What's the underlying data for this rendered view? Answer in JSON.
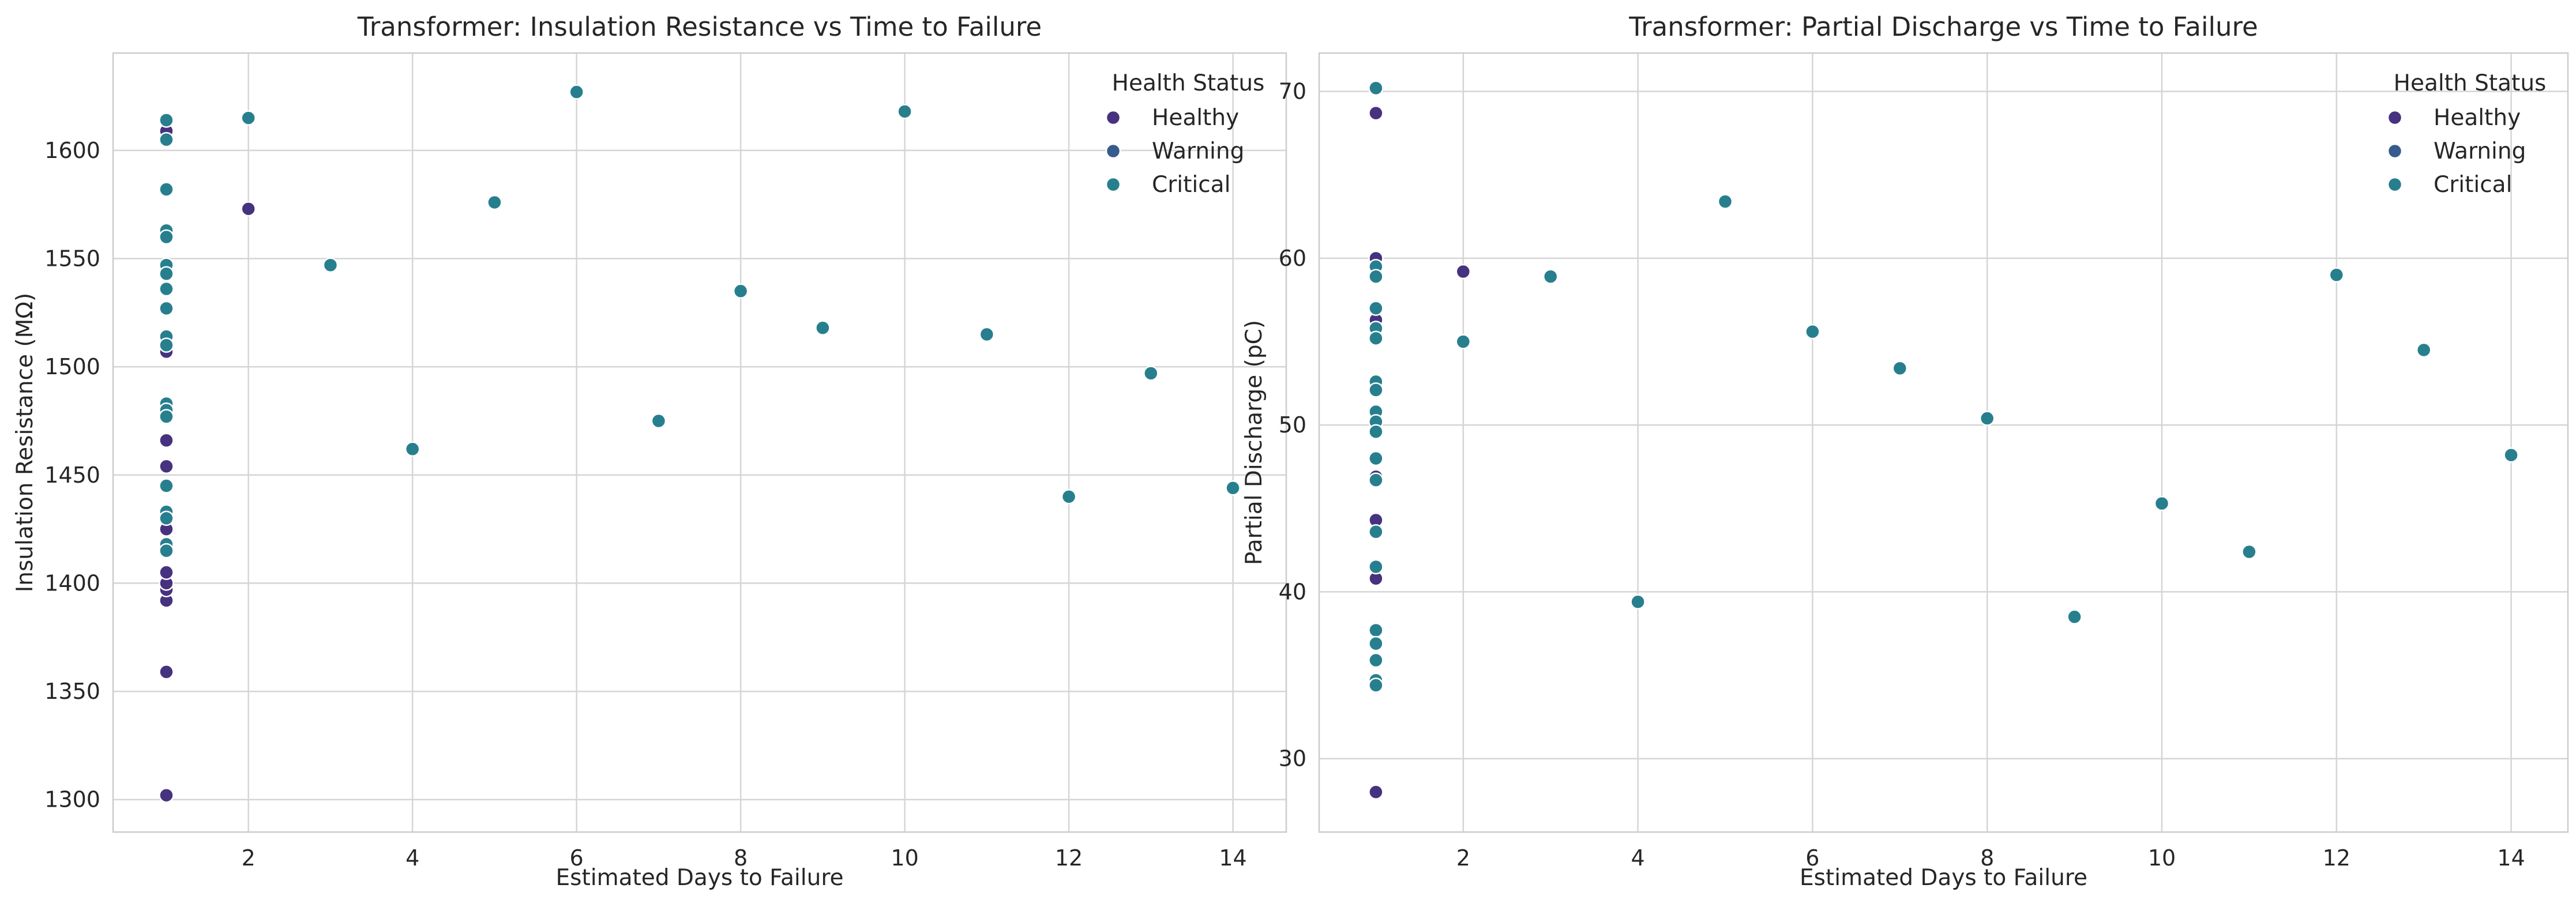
{
  "chart_data": [
    {
      "type": "scatter",
      "title": "Transformer: Insulation Resistance vs Time to Failure",
      "xlabel": "Estimated Days to Failure",
      "ylabel": "Insulation Resistance (MΩ)",
      "xlim": [
        0.35,
        14.65
      ],
      "ylim": [
        1285,
        1645
      ],
      "xticks": [
        2,
        4,
        6,
        8,
        10,
        12,
        14
      ],
      "yticks": [
        1300,
        1350,
        1400,
        1450,
        1500,
        1550,
        1600
      ],
      "grid": true,
      "legend": {
        "title": "Health Status",
        "placement": "top-right"
      },
      "series": [
        {
          "name": "Healthy",
          "color": "#46327e",
          "points": [
            [
              1,
              1302
            ],
            [
              1,
              1359
            ],
            [
              1,
              1392
            ],
            [
              1,
              1397
            ],
            [
              1,
              1400
            ],
            [
              1,
              1405
            ],
            [
              1,
              1425
            ],
            [
              1,
              1454
            ],
            [
              1,
              1466
            ],
            [
              1,
              1507
            ],
            [
              1,
              1609
            ],
            [
              2,
              1573
            ]
          ]
        },
        {
          "name": "Warning",
          "color": "#365c8d",
          "points": []
        },
        {
          "name": "Critical",
          "color": "#277f8e",
          "points": [
            [
              1,
              1614
            ],
            [
              1,
              1605
            ],
            [
              1,
              1582
            ],
            [
              1,
              1563
            ],
            [
              1,
              1560
            ],
            [
              1,
              1547
            ],
            [
              1,
              1543
            ],
            [
              1,
              1536
            ],
            [
              1,
              1527
            ],
            [
              1,
              1514
            ],
            [
              1,
              1510
            ],
            [
              1,
              1483
            ],
            [
              1,
              1480
            ],
            [
              1,
              1477
            ],
            [
              1,
              1445
            ],
            [
              1,
              1433
            ],
            [
              1,
              1430
            ],
            [
              1,
              1418
            ],
            [
              1,
              1415
            ],
            [
              2,
              1615
            ],
            [
              3,
              1547
            ],
            [
              4,
              1462
            ],
            [
              5,
              1576
            ],
            [
              6,
              1627
            ],
            [
              7,
              1475
            ],
            [
              8,
              1535
            ],
            [
              9,
              1518
            ],
            [
              10,
              1618
            ],
            [
              11,
              1515
            ],
            [
              12,
              1440
            ],
            [
              13,
              1497
            ],
            [
              14,
              1444
            ]
          ]
        }
      ]
    },
    {
      "type": "scatter",
      "title": "Transformer: Partial Discharge vs Time to Failure",
      "xlabel": "Estimated Days to Failure",
      "ylabel": "Partial Discharge (pC)",
      "xlim": [
        0.35,
        14.65
      ],
      "ylim": [
        25.6,
        72.3
      ],
      "xticks": [
        2,
        4,
        6,
        8,
        10,
        12,
        14
      ],
      "yticks": [
        30,
        40,
        50,
        60,
        70
      ],
      "grid": true,
      "legend": {
        "title": "Health Status",
        "placement": "top-right"
      },
      "series": [
        {
          "name": "Healthy",
          "color": "#46327e",
          "points": [
            [
              1,
              28.0
            ],
            [
              1,
              40.8
            ],
            [
              1,
              44.3
            ],
            [
              1,
              46.9
            ],
            [
              1,
              56.3
            ],
            [
              1,
              60.0
            ],
            [
              1,
              68.7
            ],
            [
              2,
              59.2
            ]
          ]
        },
        {
          "name": "Warning",
          "color": "#365c8d",
          "points": []
        },
        {
          "name": "Critical",
          "color": "#277f8e",
          "points": [
            [
              1,
              70.2
            ],
            [
              1,
              59.5
            ],
            [
              1,
              58.9
            ],
            [
              1,
              57.0
            ],
            [
              1,
              55.8
            ],
            [
              1,
              55.2
            ],
            [
              1,
              52.6
            ],
            [
              1,
              52.1
            ],
            [
              1,
              50.8
            ],
            [
              1,
              50.2
            ],
            [
              1,
              49.6
            ],
            [
              1,
              48.0
            ],
            [
              1,
              46.7
            ],
            [
              1,
              43.6
            ],
            [
              1,
              41.5
            ],
            [
              1,
              37.7
            ],
            [
              1,
              36.9
            ],
            [
              1,
              35.9
            ],
            [
              1,
              34.7
            ],
            [
              1,
              34.4
            ],
            [
              2,
              55.0
            ],
            [
              3,
              58.9
            ],
            [
              4,
              39.4
            ],
            [
              5,
              63.4
            ],
            [
              6,
              55.6
            ],
            [
              7,
              53.4
            ],
            [
              8,
              50.4
            ],
            [
              9,
              38.5
            ],
            [
              10,
              45.3
            ],
            [
              11,
              42.4
            ],
            [
              12,
              59.0
            ],
            [
              13,
              54.5
            ],
            [
              14,
              48.2
            ]
          ]
        }
      ]
    }
  ]
}
